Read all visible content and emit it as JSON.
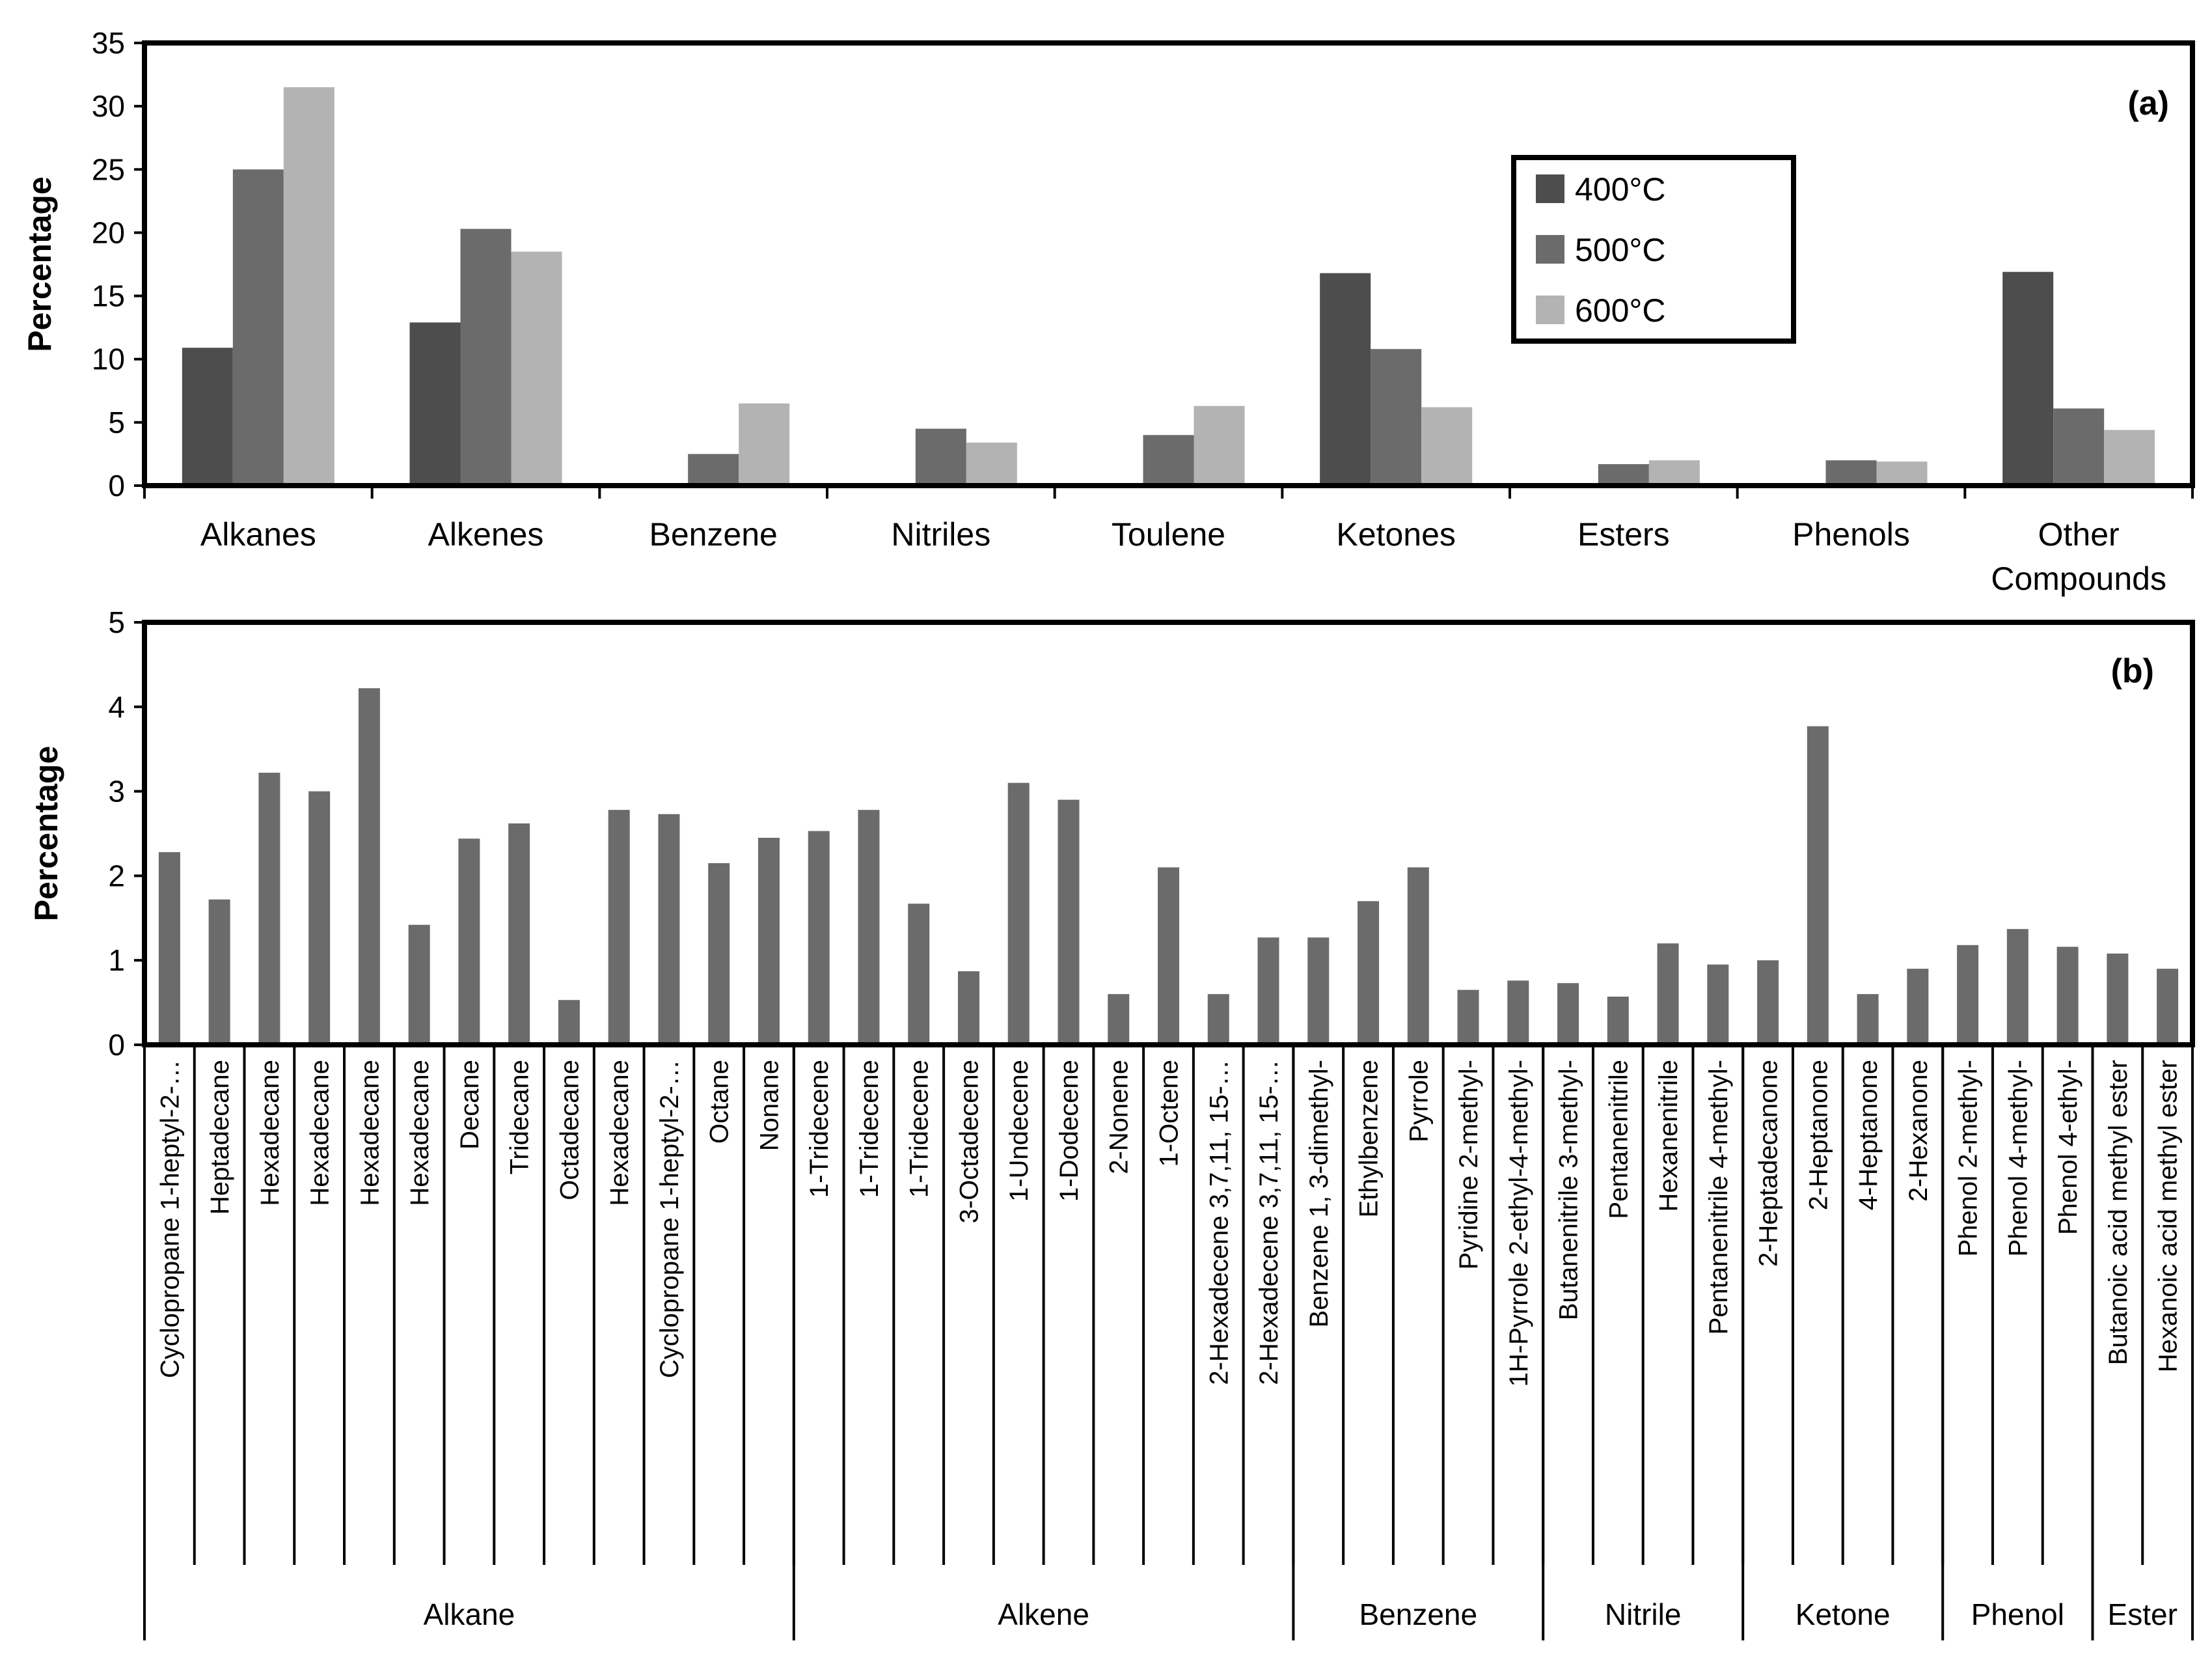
{
  "chart_data": [
    {
      "type": "bar",
      "panel_label": "(a)",
      "ylabel": "Percentage",
      "ylim": [
        0,
        35
      ],
      "yticks": [
        "0",
        "5",
        "10",
        "15",
        "20",
        "25",
        "30",
        "35"
      ],
      "categories": [
        [
          "Alkanes"
        ],
        [
          "Alkenes"
        ],
        [
          "Benzene"
        ],
        [
          "Nitriles"
        ],
        [
          "Toulene"
        ],
        [
          "Ketones"
        ],
        [
          "Esters"
        ],
        [
          "Phenols"
        ],
        [
          "Other",
          "Compounds"
        ]
      ],
      "legend_position": "upper right",
      "series": [
        {
          "name": "400°C",
          "color": "#4d4d4d",
          "values": [
            10.9,
            12.9,
            0,
            0,
            0,
            16.8,
            0,
            0,
            16.9
          ]
        },
        {
          "name": "500°C",
          "color": "#6b6b6b",
          "values": [
            25.0,
            20.3,
            2.5,
            4.5,
            4.0,
            10.8,
            1.7,
            2.0,
            6.1
          ]
        },
        {
          "name": "600°C",
          "color": "#b3b3b3",
          "values": [
            31.5,
            18.5,
            6.5,
            3.4,
            6.3,
            6.2,
            2.0,
            1.9,
            4.4
          ]
        }
      ]
    },
    {
      "type": "bar",
      "panel_label": "(b)",
      "ylabel": "Percentage",
      "ylim": [
        0,
        5
      ],
      "yticks": [
        "0",
        "1",
        "2",
        "3",
        "4",
        "5"
      ],
      "color": "#6b6b6b",
      "categories": [
        "Cyclopropane 1-heptyl-2-…",
        "Heptadecane",
        "Hexadecane",
        "Hexadecane",
        "Hexadecane",
        "Hexadecane",
        "Decane",
        "Tridecane",
        "Octadecane",
        "Hexadecane",
        "Cyclopropane 1-heptyl-2-…",
        "Octane",
        "Nonane",
        "1-Tridecene",
        "1-Tridecene",
        "1-Tridecene",
        "3-Octadecene",
        "1-Undecene",
        "1-Dodecene",
        "2-Nonene",
        "1-Octene",
        "2-Hexadecene 3,7,11, 15-…",
        "2-Hexadecene 3,7,11, 15-…",
        "Benzene 1, 3-dimethyl-",
        "Ethylbenzene",
        "Pyrrole",
        "Pyridine 2-methyl-",
        "1H-Pyrrole 2-ethyl-4-methyl-",
        "Butanenitrile 3-methyl-",
        "Pentanenitrile",
        "Hexanenitrile",
        "Pentanenitrile 4-methyl-",
        "2-Heptadecanone",
        "2-Heptanone",
        "4-Heptanone",
        "2-Hexanone",
        "Phenol 2-methyl-",
        "Phenol 4-methyl-",
        "Phenol 4-ethyl-",
        "Butanoic acid methyl ester",
        "Hexanoic acid methyl ester"
      ],
      "values": [
        2.28,
        1.72,
        3.22,
        3.0,
        4.22,
        1.42,
        2.44,
        2.62,
        0.53,
        2.78,
        2.73,
        2.15,
        2.45,
        2.53,
        2.78,
        1.67,
        0.87,
        3.1,
        2.9,
        0.6,
        2.1,
        0.6,
        1.27,
        1.27,
        1.7,
        2.1,
        0.65,
        0.76,
        0.73,
        0.57,
        1.2,
        0.95,
        1.0,
        3.77,
        0.6,
        0.9,
        1.18,
        1.37,
        1.16,
        1.08,
        0.9
      ],
      "groups": [
        {
          "name": "Alkane",
          "count": 13
        },
        {
          "name": "Alkene",
          "count": 10
        },
        {
          "name": "Benzene",
          "count": 5
        },
        {
          "name": "Nitrile",
          "count": 4
        },
        {
          "name": "Ketone",
          "count": 4
        },
        {
          "name": "Phenol",
          "count": 3
        },
        {
          "name": "Ester",
          "count": 2
        }
      ]
    }
  ]
}
